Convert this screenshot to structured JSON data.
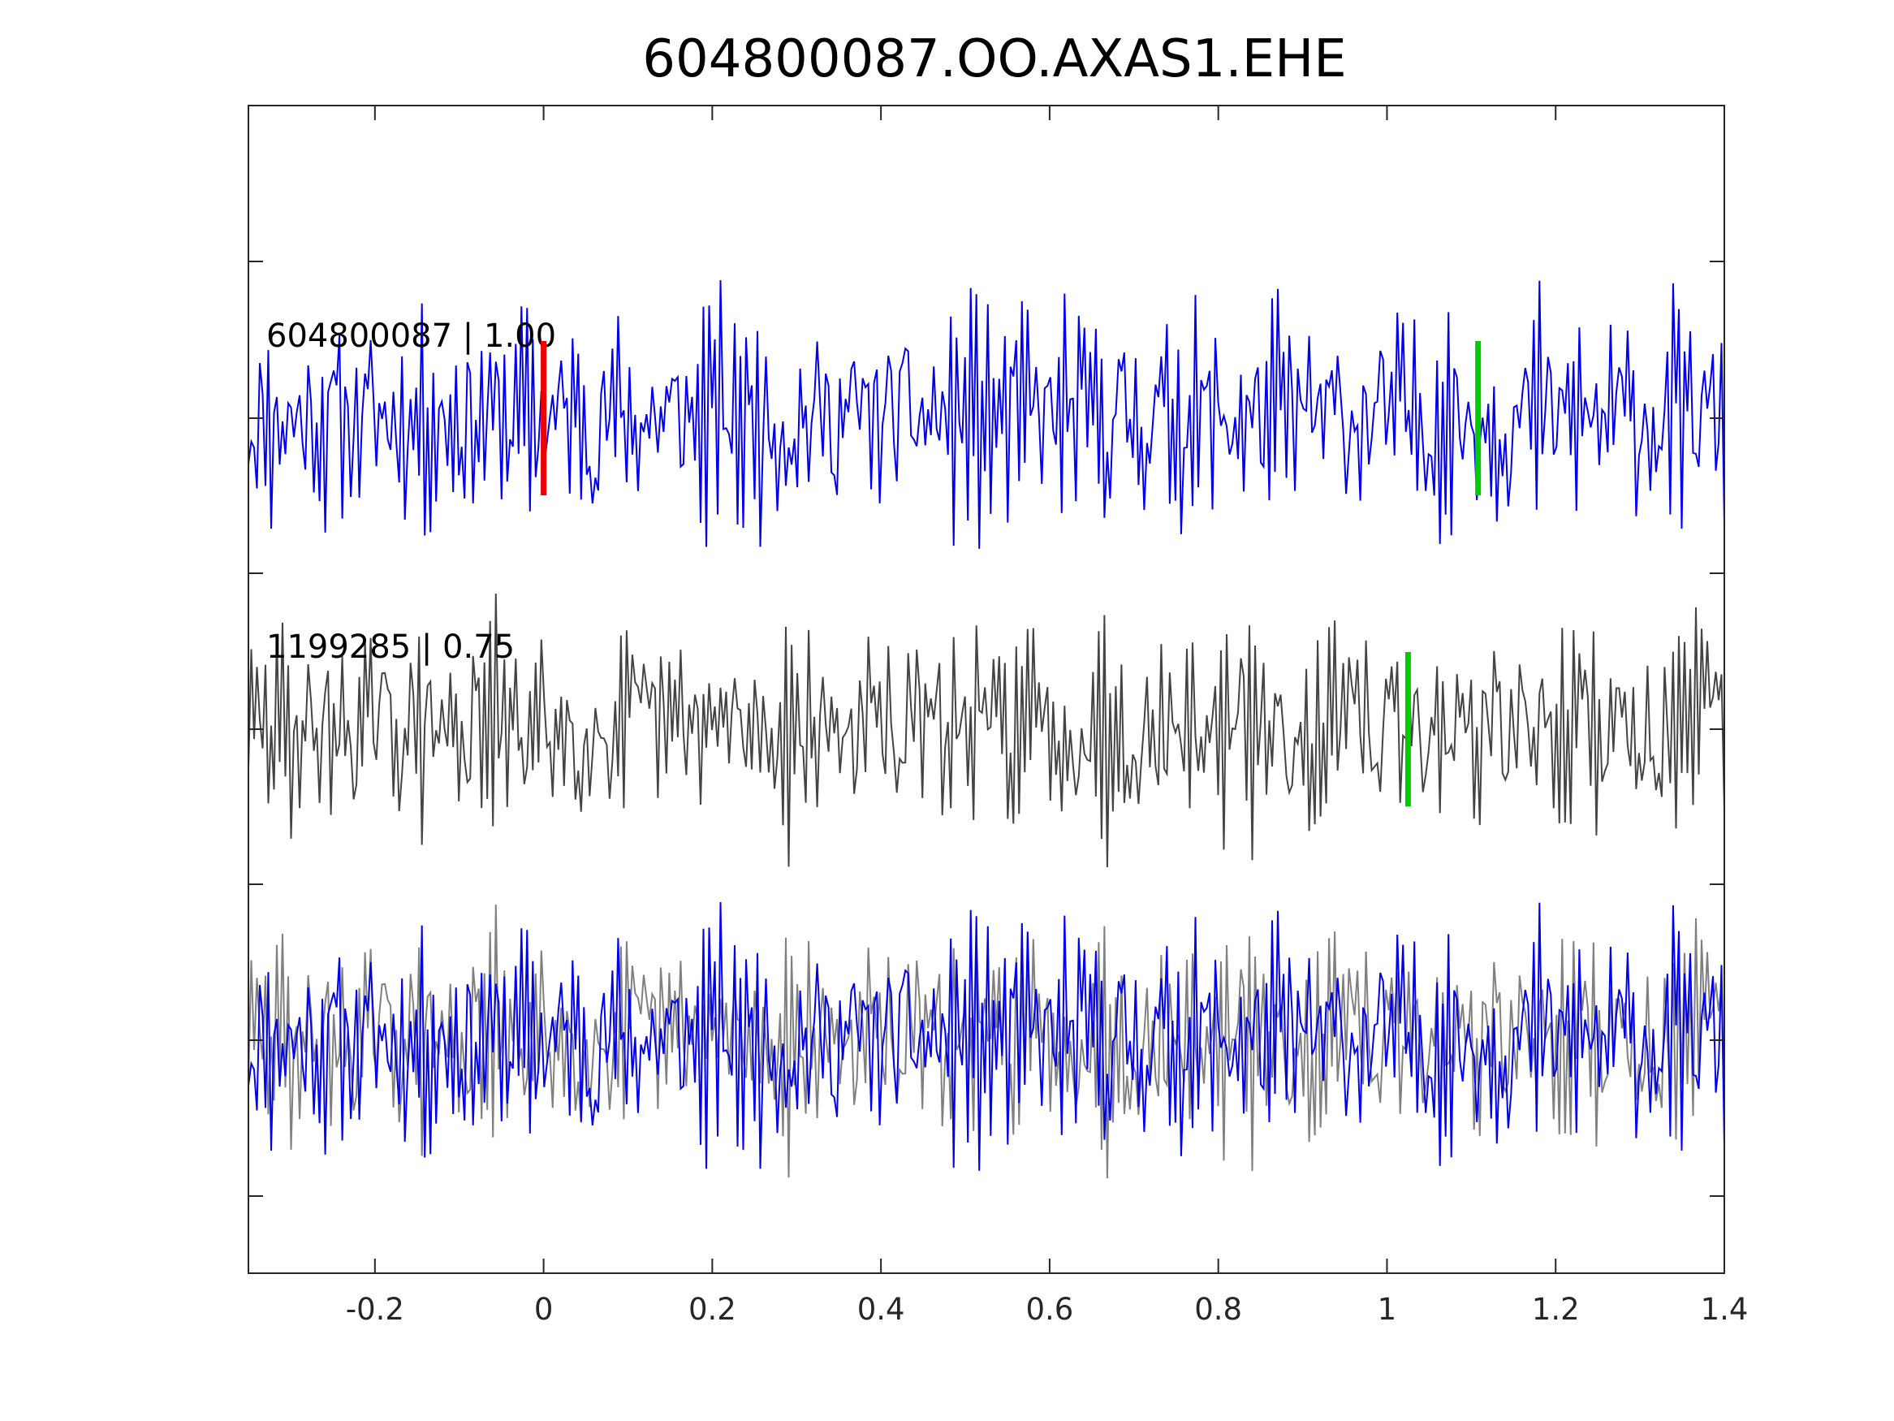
{
  "chart_data": {
    "type": "line",
    "title": "604800087.OO.AXAS1.EHE",
    "xlim": [
      -0.35,
      1.4
    ],
    "x_ticks": [
      -0.2,
      0,
      0.2,
      0.4,
      0.6,
      0.8,
      1,
      1.2,
      1.4
    ],
    "x_tick_labels": [
      "-0.2",
      "0",
      "0.2",
      "0.4",
      "0.6",
      "0.8",
      "1",
      "1.2",
      "1.4"
    ],
    "xlabel": "",
    "ylabel": "",
    "grid": false,
    "traces": [
      {
        "label": "604800087 | 1.00",
        "color": "#0000ee",
        "seed": 11,
        "picks": [
          {
            "x": 0.0,
            "color": "#ee0000"
          },
          {
            "x": 1.108,
            "color": "#00cc00"
          }
        ]
      },
      {
        "label": "1199285 | 0.75",
        "color": "#444444",
        "seed": 29,
        "picks": [
          {
            "x": 1.025,
            "color": "#00cc00"
          }
        ]
      }
    ],
    "overlay": {
      "colors": [
        "#0000ee",
        "#808080"
      ]
    },
    "colors": {
      "axes": "#262626",
      "primary": "#0000ee",
      "secondary": "#444444",
      "overlay_secondary": "#808080",
      "p_pick": "#ee0000",
      "s_pick": "#00cc00"
    }
  }
}
